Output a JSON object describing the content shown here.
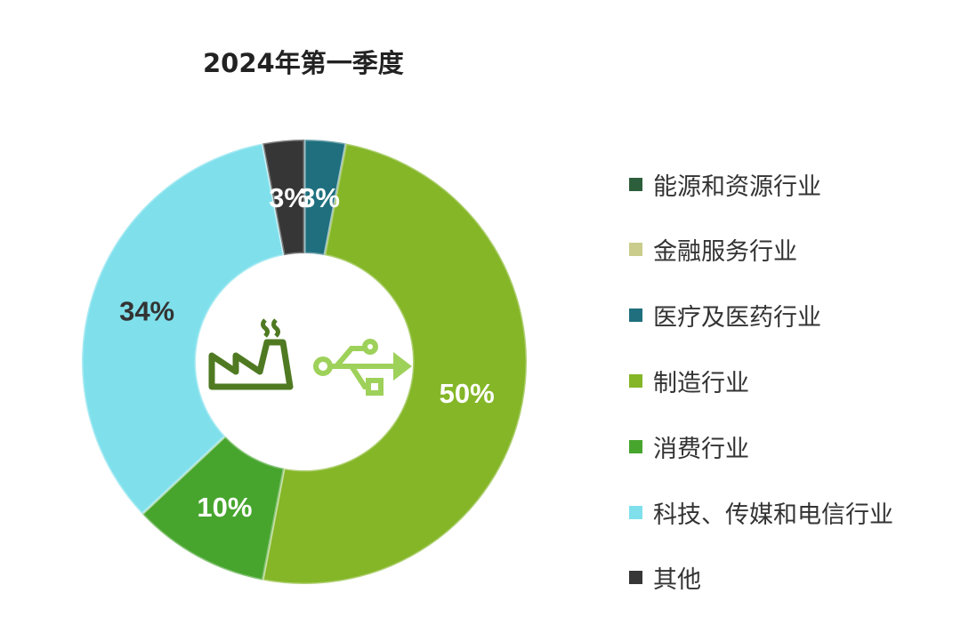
{
  "chart_data": {
    "type": "pie",
    "donut": true,
    "title": "2024年第一季度",
    "categories": [
      "能源和资源行业",
      "金融服务行业",
      "医疗及医药行业",
      "制造行业",
      "消费行业",
      "科技、传媒和电信行业",
      "其他"
    ],
    "values": [
      0,
      0,
      3,
      50,
      10,
      34,
      3
    ],
    "data_labels": [
      "",
      "",
      "3%",
      "50%",
      "10%",
      "34%",
      "3%"
    ],
    "colors": [
      "#2d5e3b",
      "#c9cc8a",
      "#1f6f7e",
      "#84b627",
      "#47a52e",
      "#7fe0ec",
      "#363636"
    ],
    "label_colors": [
      "#ffffff",
      "#ffffff",
      "#ffffff",
      "#ffffff",
      "#ffffff",
      "#333333",
      "#ffffff"
    ],
    "legend_position": "right",
    "center_icons": [
      "factory-icon",
      "usb-icon"
    ]
  }
}
